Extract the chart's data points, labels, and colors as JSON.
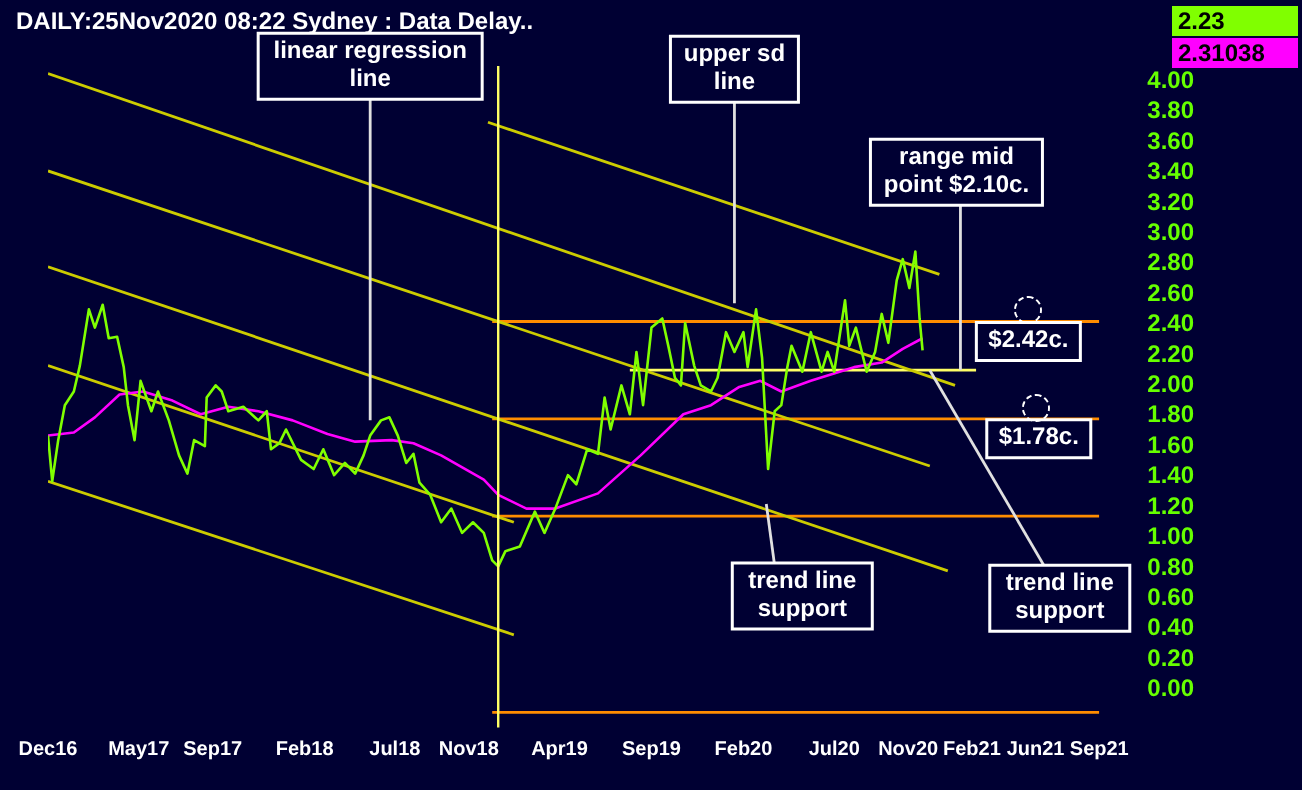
{
  "chart_data": {
    "type": "line",
    "title": "DAILY:25Nov2020 08:22 Sydney : Data Delay..",
    "grid": false,
    "legend": false,
    "marker": "none",
    "xlim": [
      "2016-12",
      "2021-09-15"
    ],
    "xticks": [
      {
        "value": "2016-12",
        "label": "Dec16"
      },
      {
        "value": "2017-05",
        "label": "May17"
      },
      {
        "value": "2017-09",
        "label": "Sep17"
      },
      {
        "value": "2018-02",
        "label": "Feb18"
      },
      {
        "value": "2018-07",
        "label": "Jul18"
      },
      {
        "value": "2018-11",
        "label": "Nov18"
      },
      {
        "value": "2019-04",
        "label": "Apr19"
      },
      {
        "value": "2019-09",
        "label": "Sep19"
      },
      {
        "value": "2020-02",
        "label": "Feb20"
      },
      {
        "value": "2020-07",
        "label": "Jul20"
      },
      {
        "value": "2020-11",
        "label": "Nov20"
      },
      {
        "value": "2021-02-15",
        "label": "Feb21"
      },
      {
        "value": "2021-06",
        "label": "Jun21"
      },
      {
        "value": "2021-09-15",
        "label": "Sep21"
      }
    ],
    "ylim": [
      -0.25,
      4.1
    ],
    "yticks": [
      {
        "value": 0,
        "label": "0.00"
      },
      {
        "value": 0.2,
        "label": "0.20"
      },
      {
        "value": 0.4,
        "label": "0.40"
      },
      {
        "value": 0.6,
        "label": "0.60"
      },
      {
        "value": 0.8,
        "label": "0.80"
      },
      {
        "value": 1,
        "label": "1.00"
      },
      {
        "value": 1.2,
        "label": "1.20"
      },
      {
        "value": 1.4,
        "label": "1.40"
      },
      {
        "value": 1.6,
        "label": "1.60"
      },
      {
        "value": 1.8,
        "label": "1.80"
      },
      {
        "value": 2,
        "label": "2.00"
      },
      {
        "value": 2.2,
        "label": "2.20"
      },
      {
        "value": 2.4,
        "label": "2.40"
      },
      {
        "value": 2.6,
        "label": "2.60"
      },
      {
        "value": 2.8,
        "label": "2.80"
      },
      {
        "value": 3,
        "label": "3.00"
      },
      {
        "value": 3.2,
        "label": "3.20"
      },
      {
        "value": 3.4,
        "label": "3.40"
      },
      {
        "value": 3.6,
        "label": "3.60"
      },
      {
        "value": 3.8,
        "label": "3.80"
      },
      {
        "value": 4,
        "label": "4.00"
      }
    ],
    "ref_lines": [
      {
        "axis": "x",
        "value": "2018-12-20",
        "color": "#ffff66"
      }
    ],
    "series": [
      {
        "color": "#80ff00",
        "x": [
          "2016-12-01",
          "2016-12-08",
          "2016-12-18",
          "2016-12-29",
          "2017-01-13",
          "2017-01-23",
          "2017-02-07",
          "2017-02-17",
          "2017-03-02",
          "2017-03-12",
          "2017-03-26",
          "2017-04-06",
          "2017-04-13",
          "2017-04-24",
          "2017-05-04",
          "2017-05-22",
          "2017-06-02",
          "2017-06-20",
          "2017-07-07",
          "2017-07-21",
          "2017-08-01",
          "2017-08-19",
          "2017-08-22",
          "2017-09-06",
          "2017-09-16",
          "2017-09-27",
          "2017-10-22",
          "2017-11-16",
          "2017-11-30",
          "2017-12-07",
          "2017-12-21",
          "2018-01-01",
          "2018-01-26",
          "2018-02-16",
          "2018-03-04",
          "2018-03-22",
          "2018-04-09",
          "2018-04-26",
          "2018-05-10",
          "2018-05-21",
          "2018-06-08",
          "2018-06-22",
          "2018-07-06",
          "2018-07-20",
          "2018-08-01",
          "2018-08-11",
          "2018-08-29",
          "2018-09-16",
          "2018-10-03",
          "2018-10-21",
          "2018-11-08",
          "2018-11-26",
          "2018-12-10",
          "2018-12-20",
          "2019-01-01",
          "2019-01-25",
          "2019-02-19",
          "2019-03-07",
          "2019-03-25",
          "2019-04-15",
          "2019-04-29",
          "2019-05-17",
          "2019-06-04",
          "2019-06-15",
          "2019-06-25",
          "2019-07-13",
          "2019-07-27",
          "2019-08-07",
          "2019-08-18",
          "2019-09-01",
          "2019-09-19",
          "2019-09-29",
          "2019-10-10",
          "2019-10-20",
          "2019-10-27",
          "2019-11-11",
          "2019-11-22",
          "2019-12-09",
          "2019-12-20",
          "2020-01-03",
          "2020-01-17",
          "2020-02-01",
          "2020-02-08",
          "2020-02-22",
          "2020-03-03",
          "2020-03-13",
          "2020-03-24",
          "2020-04-04",
          "2020-04-14",
          "2020-04-21",
          "2020-05-09",
          "2020-05-23",
          "2020-06-10",
          "2020-06-20",
          "2020-07-01",
          "2020-07-19",
          "2020-07-26",
          "2020-08-06",
          "2020-08-24",
          "2020-09-07",
          "2020-09-18",
          "2020-09-29",
          "2020-10-13",
          "2020-10-23",
          "2020-11-03",
          "2020-11-13",
          "2020-11-20",
          "2020-11-25"
        ],
        "values": [
          1.67,
          1.37,
          1.64,
          1.87,
          1.96,
          2.13,
          2.5,
          2.38,
          2.53,
          2.31,
          2.32,
          2.12,
          1.87,
          1.64,
          2.03,
          1.83,
          1.96,
          1.77,
          1.54,
          1.42,
          1.64,
          1.6,
          1.92,
          2.0,
          1.96,
          1.83,
          1.86,
          1.77,
          1.83,
          1.58,
          1.62,
          1.71,
          1.51,
          1.45,
          1.58,
          1.41,
          1.49,
          1.42,
          1.54,
          1.67,
          1.77,
          1.79,
          1.67,
          1.49,
          1.55,
          1.36,
          1.28,
          1.1,
          1.19,
          1.03,
          1.1,
          1.03,
          0.85,
          0.81,
          0.91,
          0.94,
          1.17,
          1.03,
          1.19,
          1.41,
          1.35,
          1.58,
          1.55,
          1.92,
          1.71,
          2.0,
          1.81,
          2.22,
          1.87,
          2.38,
          2.44,
          2.26,
          2.05,
          2.0,
          2.41,
          2.13,
          2.0,
          1.96,
          2.05,
          2.35,
          2.22,
          2.35,
          2.12,
          2.5,
          2.18,
          1.45,
          1.83,
          1.87,
          2.12,
          2.26,
          2.09,
          2.35,
          2.09,
          2.22,
          2.09,
          2.56,
          2.26,
          2.38,
          2.09,
          2.22,
          2.47,
          2.28,
          2.69,
          2.83,
          2.64,
          2.88,
          2.44,
          2.23
        ]
      },
      {
        "color": "#ff00ff",
        "x": [
          "2016-12-01",
          "2017-01-13",
          "2017-02-17",
          "2017-03-30",
          "2017-05-08",
          "2017-06-26",
          "2017-08-12",
          "2017-09-27",
          "2017-11-16",
          "2018-01-12",
          "2018-03-11",
          "2018-04-26",
          "2018-06-26",
          "2018-08-01",
          "2018-09-16",
          "2018-11-26",
          "2018-12-20",
          "2019-02-05",
          "2019-03-25",
          "2019-06-04",
          "2019-08-14",
          "2019-10-24",
          "2019-12-09",
          "2020-01-25",
          "2020-02-29",
          "2020-04-04",
          "2020-05-23",
          "2020-08-03",
          "2020-09-18",
          "2020-10-23",
          "2020-11-25"
        ],
        "values": [
          1.67,
          1.69,
          1.79,
          1.94,
          1.96,
          1.9,
          1.81,
          1.86,
          1.83,
          1.77,
          1.68,
          1.63,
          1.64,
          1.62,
          1.54,
          1.38,
          1.28,
          1.19,
          1.19,
          1.29,
          1.54,
          1.81,
          1.87,
          1.99,
          2.03,
          1.96,
          2.03,
          2.12,
          2.15,
          2.24,
          2.31
        ]
      },
      {
        "color": "#cccc00",
        "x": [
          "2018-12-03",
          "2020-12-23"
        ],
        "values": [
          3.73,
          2.73
        ]
      },
      {
        "color": "#cccc00",
        "x": [
          "2016-12-01",
          "2021-01-18"
        ],
        "values": [
          4.05,
          2.0
        ]
      },
      {
        "color": "#cccc00",
        "x": [
          "2016-12-01",
          "2020-12-07"
        ],
        "values": [
          3.41,
          1.47
        ]
      },
      {
        "color": "#cccc00",
        "x": [
          "2016-12-01",
          "2021-01-06"
        ],
        "values": [
          2.78,
          0.78
        ]
      },
      {
        "color": "#cccc00",
        "x": [
          "2016-12-01",
          "2019-01-15"
        ],
        "values": [
          2.13,
          1.1
        ]
      },
      {
        "color": "#cccc00",
        "x": [
          "2016-12-01",
          "2019-01-15"
        ],
        "values": [
          1.37,
          0.36
        ]
      },
      {
        "color": "#ffff66",
        "x": [
          "2019-07-27",
          "2021-02-22"
        ],
        "values": [
          2.1,
          2.1
        ]
      },
      {
        "color": "#ff8c00",
        "x": [
          "2018-12-10",
          "2021-09-15"
        ],
        "values": [
          2.42,
          2.42
        ]
      },
      {
        "color": "#ff8c00",
        "x": [
          "2018-12-10",
          "2021-09-15"
        ],
        "values": [
          1.78,
          1.78
        ]
      },
      {
        "color": "#ff8c00",
        "x": [
          "2018-12-10",
          "2021-09-15"
        ],
        "values": [
          1.14,
          1.14
        ]
      },
      {
        "color": "#ff8c00",
        "x": [
          "2018-12-10",
          "2021-09-15"
        ],
        "values": [
          -0.15,
          -0.15
        ]
      }
    ],
    "annotations": [
      "2.23",
      "2.31038",
      {
        "text": "linear regression line",
        "x": "2018-05-21",
        "y": 1.77
      },
      {
        "text": "upper sd line",
        "x": "2020-01-17",
        "y": 2.54
      },
      {
        "text": "range mid point $2.10c.",
        "x": "2021-01-27",
        "y": 2.1
      },
      {
        "text": "$2.42c.",
        "x": "2021-05-20",
        "y": 2.42
      },
      {
        "text": "$1.78c.",
        "x": "2021-06-03",
        "y": 1.78
      },
      {
        "text": "trend line support",
        "x": "2020-03-10",
        "y": 1.22
      },
      {
        "text": "trend line support",
        "x": "2020-12-07",
        "y": 2.1
      }
    ]
  }
}
